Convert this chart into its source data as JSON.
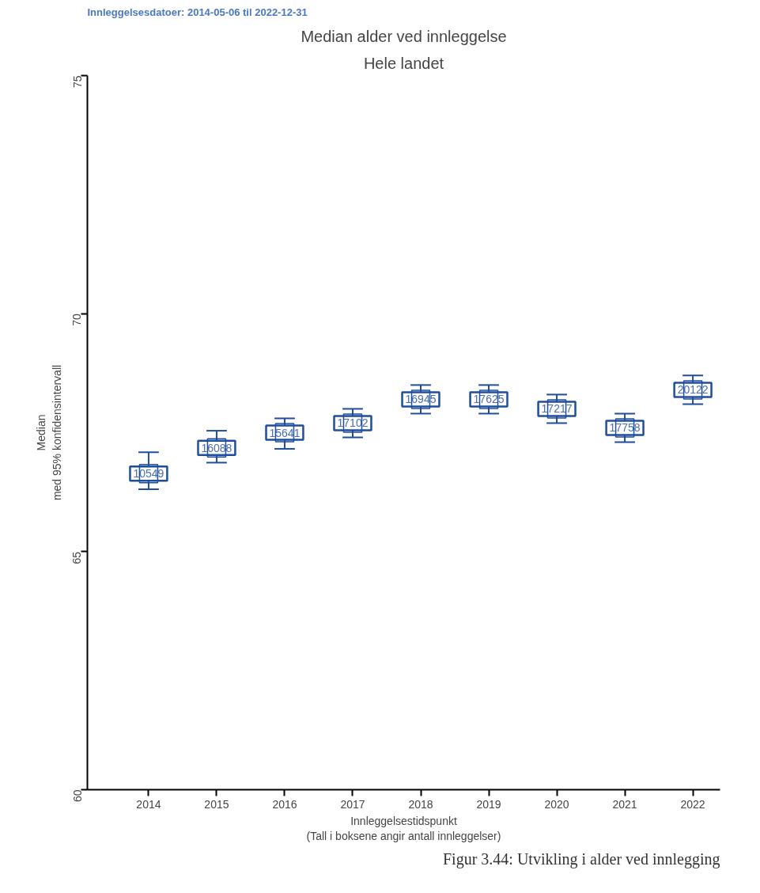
{
  "chart_data": {
    "type": "scatter",
    "title": "Median alder ved innleggelse",
    "subtitle": "Hele landet",
    "xlabel": "Innleggelsestidspunkt\n(Tall i boksene angir antall innleggelser)",
    "ylabel": "Median\nmed 95% konfidensintervall",
    "annotations": [
      "Innleggelsesdatoer: 2014-05-06 til 2022-12-31",
      "Figur 3.44: Utvikling i alder ved innlegging",
      {
        "text": "10549",
        "x": "2014",
        "y": 66.64
      },
      {
        "text": "16088",
        "x": "2015",
        "y": 67.18
      },
      {
        "text": "15641",
        "x": "2016",
        "y": 67.5
      },
      {
        "text": "17102",
        "x": "2017",
        "y": 67.7
      },
      {
        "text": "16945",
        "x": "2018",
        "y": 68.2
      },
      {
        "text": "17625",
        "x": "2019",
        "y": 68.2
      },
      {
        "text": "17217",
        "x": "2020",
        "y": 68.0
      },
      {
        "text": "17758",
        "x": "2021",
        "y": 67.6
      },
      {
        "text": "20122",
        "x": "2022",
        "y": 68.4
      }
    ],
    "categories": [
      "2014",
      "2015",
      "2016",
      "2017",
      "2018",
      "2019",
      "2020",
      "2021",
      "2022"
    ],
    "values": [
      66.64,
      67.18,
      67.5,
      67.7,
      68.2,
      68.2,
      68.0,
      67.6,
      68.4
    ],
    "errors": [
      [
        66.31,
        67.09
      ],
      [
        66.87,
        67.54
      ],
      [
        67.16,
        67.8
      ],
      [
        67.4,
        68.0
      ],
      [
        67.9,
        68.5
      ],
      [
        67.9,
        68.5
      ],
      [
        67.7,
        68.3
      ],
      [
        67.3,
        67.9
      ],
      [
        68.1,
        68.7
      ]
    ],
    "color": "#1f4e9c",
    "marker": "square",
    "ylim": [
      60,
      75
    ],
    "yticks": [
      60,
      65,
      70,
      75
    ],
    "grid": false,
    "legend": false
  }
}
